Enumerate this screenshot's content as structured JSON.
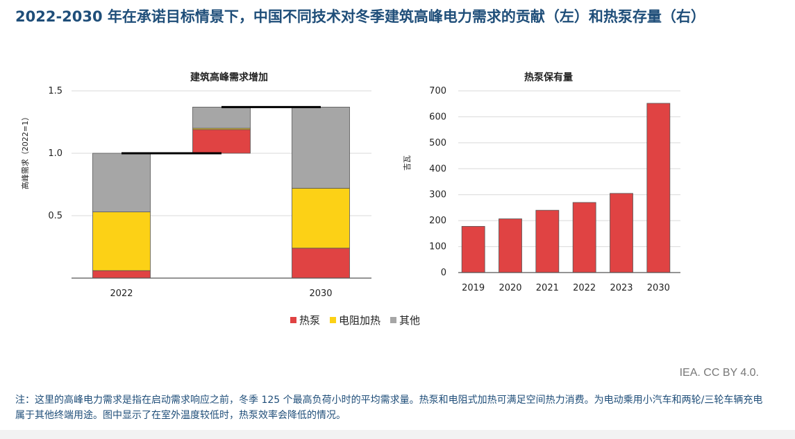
{
  "page": {
    "title": "2022-2030 年在承诺目标情景下，中国不同技术对冬季建筑高峰电力需求的贡献（左）和热泵存量（右）",
    "credit": "IEA. CC BY 4.0.",
    "note": "注：这里的高峰电力需求是指在启动需求响应之前，冬季 125 个最高负荷小时的平均需求量。热泵和电阻式加热可满足空间热力消费。为电动乘用小汽车和两轮/三轮车辆充电属于其他终端用途。图中显示了在室外温度较低时，热泵效率会降低的情况。"
  },
  "legend": {
    "items": [
      {
        "label": "热泵",
        "color": "#e04343"
      },
      {
        "label": "电阻加热",
        "color": "#fcd116"
      },
      {
        "label": "其他",
        "color": "#a6a6a6"
      }
    ]
  },
  "chart_data": [
    {
      "type": "bar",
      "subtype": "waterfall",
      "title": "建筑高峰需求增加",
      "ylabel": "高峰需求（2022=1）",
      "xlabel": "",
      "ylim": [
        0,
        1.5
      ],
      "yticks": [
        "0.5",
        "1.0",
        "1.5"
      ],
      "grid": true,
      "categories": [
        "2022",
        "",
        "2030"
      ],
      "bars": [
        {
          "label": "2022",
          "base": 0,
          "segments": [
            {
              "series": "热泵",
              "value": 0.06
            },
            {
              "series": "电阻加热",
              "value": 0.47
            },
            {
              "series": "其他",
              "value": 0.47
            }
          ]
        },
        {
          "label": "",
          "base": 1.0,
          "segments": [
            {
              "series": "热泵",
              "value": 0.19
            },
            {
              "series": "电阻加热",
              "value": 0.01
            },
            {
              "series": "其他",
              "value": 0.17
            }
          ]
        },
        {
          "label": "2030",
          "base": 0,
          "segments": [
            {
              "series": "热泵",
              "value": 0.24
            },
            {
              "series": "电阻加热",
              "value": 0.48
            },
            {
              "series": "其他",
              "value": 0.65
            }
          ]
        }
      ],
      "connectors": [
        1.0,
        1.37
      ]
    },
    {
      "type": "bar",
      "title": "热泵保有量",
      "ylabel": "吉瓦",
      "xlabel": "",
      "ylim": [
        0,
        700
      ],
      "yticks": [
        "0",
        "100",
        "200",
        "300",
        "400",
        "500",
        "600",
        "700"
      ],
      "grid": true,
      "categories": [
        "2019",
        "2020",
        "2021",
        "2022",
        "2023",
        "2030"
      ],
      "series": [
        {
          "name": "热泵",
          "values": [
            178,
            207,
            240,
            270,
            305,
            652
          ]
        }
      ]
    }
  ]
}
